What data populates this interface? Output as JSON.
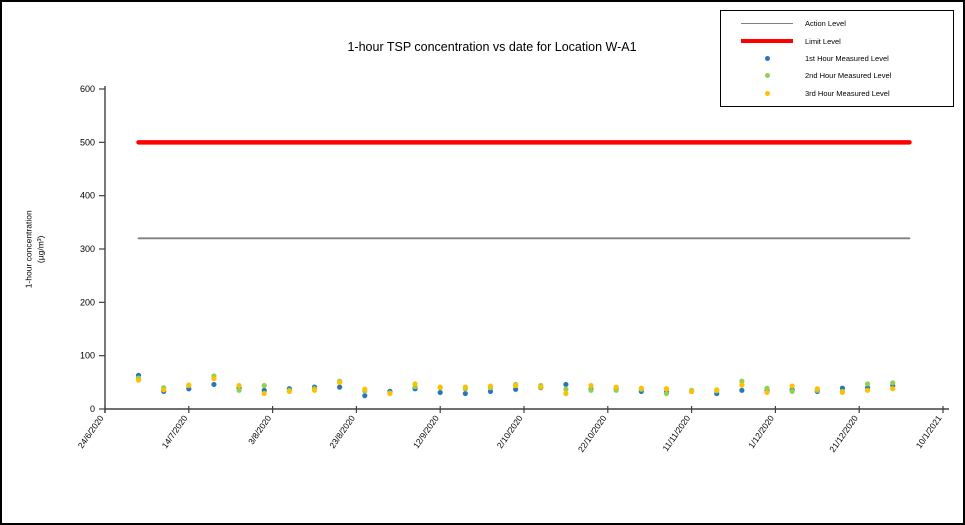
{
  "window": {
    "background": "#FFFFFF",
    "border_color": "#000000"
  },
  "chart_data": {
    "type": "scatter",
    "title": "1-hour TSP concentration vs date for Location W-A1",
    "ylabel_line1": "1-hour concentration",
    "ylabel_line2": "(µg/m³)",
    "xlabel": "",
    "grid": "off",
    "legend_position": "top-right",
    "y_axis": {
      "min": 0,
      "max": 600,
      "tick_interval": 100,
      "tick_labels": [
        "0",
        "100",
        "200",
        "300",
        "400",
        "500",
        "600"
      ]
    },
    "x_axis": {
      "start_date": "24/6/2020",
      "end_date": "10/1/2021",
      "tick_labels": [
        "24/6/2020",
        "14/7/2020",
        "3/8/2020",
        "23/8/2020",
        "12/9/2020",
        "2/10/2020",
        "22/10/2020",
        "11/11/2020",
        "1/12/2020",
        "21/12/2020",
        "10/1/2021"
      ]
    },
    "reference_lines": [
      {
        "name": "Action Level",
        "value": 320,
        "color": "#808080",
        "stroke_width": 1.8,
        "x_start": "2/7/2020",
        "x_end": "2/1/2021"
      },
      {
        "name": "Limit Level",
        "value": 500,
        "color": "#FF0000",
        "stroke_width": 4.5,
        "x_start": "2/7/2020",
        "x_end": "2/1/2021"
      }
    ],
    "dates": [
      "2/7/2020",
      "8/7/2020",
      "14/7/2020",
      "20/7/2020",
      "26/7/2020",
      "1/8/2020",
      "7/8/2020",
      "13/8/2020",
      "19/8/2020",
      "25/8/2020",
      "31/8/2020",
      "6/9/2020",
      "12/9/2020",
      "18/9/2020",
      "24/9/2020",
      "30/9/2020",
      "6/10/2020",
      "12/10/2020",
      "18/10/2020",
      "24/10/2020",
      "30/10/2020",
      "5/11/2020",
      "11/11/2020",
      "17/11/2020",
      "23/11/2020",
      "29/11/2020",
      "5/12/2020",
      "11/12/2020",
      "17/12/2020",
      "23/12/2020",
      "29/12/2020"
    ],
    "series": [
      {
        "name": "1st Hour Measured Level",
        "color": "#2E75B6",
        "marker": "dot",
        "values": [
          63,
          33,
          38,
          46,
          40,
          35,
          38,
          41,
          41,
          25,
          33,
          38,
          31,
          29,
          33,
          37,
          40,
          46,
          37,
          38,
          33,
          32,
          33,
          29,
          35,
          35,
          36,
          33,
          39,
          40,
          44
        ]
      },
      {
        "name": "2nd Hour Measured Level",
        "color": "#92D050",
        "marker": "dot",
        "values": [
          58,
          40,
          44,
          62,
          35,
          44,
          35,
          38,
          52,
          34,
          30,
          42,
          40,
          38,
          40,
          46,
          44,
          37,
          35,
          35,
          37,
          29,
          35,
          34,
          52,
          39,
          33,
          35,
          33,
          47,
          49
        ]
      },
      {
        "name": "3rd Hour Measured Level",
        "color": "#FFC000",
        "marker": "dot",
        "values": [
          54,
          36,
          45,
          57,
          44,
          29,
          33,
          35,
          50,
          37,
          29,
          47,
          41,
          41,
          43,
          44,
          41,
          29,
          44,
          41,
          39,
          38,
          33,
          36,
          45,
          31,
          43,
          38,
          31,
          35,
          38
        ]
      }
    ]
  },
  "legend": {
    "items": [
      {
        "label": "Action Level",
        "swatch": "line",
        "color": "#808080"
      },
      {
        "label": "Limit Level",
        "swatch": "thick-line",
        "color": "#FF0000"
      },
      {
        "label": "1st Hour Measured Level",
        "swatch": "dot",
        "color": "#2E75B6"
      },
      {
        "label": "2nd Hour Measured Level",
        "swatch": "dot",
        "color": "#92D050"
      },
      {
        "label": "3rd Hour Measured Level",
        "swatch": "dot",
        "color": "#FFC000"
      }
    ]
  }
}
